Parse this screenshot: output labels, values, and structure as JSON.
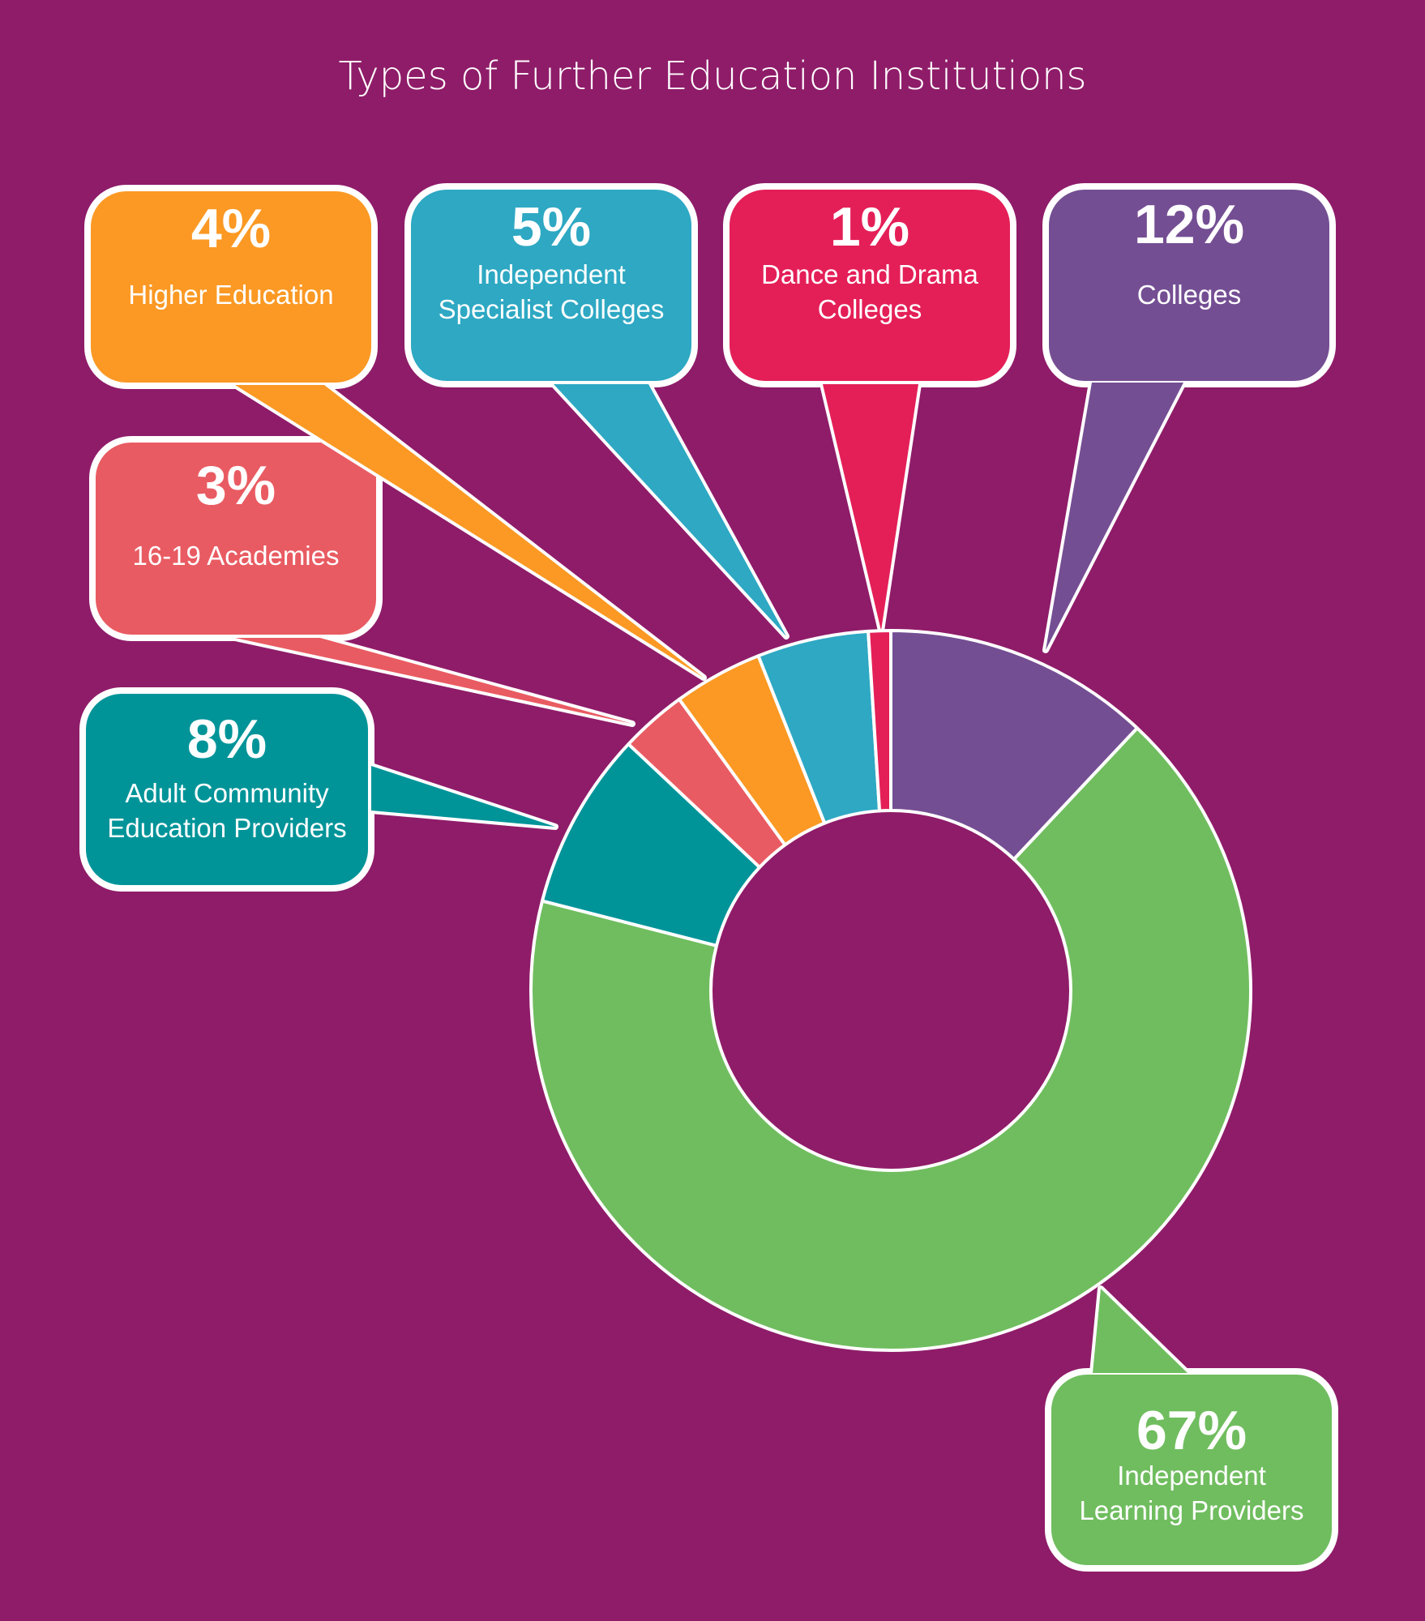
{
  "chart_data": {
    "type": "pie",
    "title": "Types of Further Education Institutions",
    "categories": [
      "Colleges",
      "Independent Learning Providers",
      "Adult Community Education Providers",
      "16-19 Academies",
      "Higher Education",
      "Independent Specialist Colleges",
      "Dance and Drama Colleges"
    ],
    "values": [
      12,
      67,
      8,
      3,
      4,
      5,
      1
    ],
    "labels": [
      "12%",
      "67%",
      "8%",
      "3%",
      "4%",
      "5%",
      "1%"
    ],
    "colors": [
      "#744e93",
      "#70bd5f",
      "#009499",
      "#e95b62",
      "#fb9924",
      "#2ea8c3",
      "#e41f58"
    ],
    "legend": "callouts"
  }
}
